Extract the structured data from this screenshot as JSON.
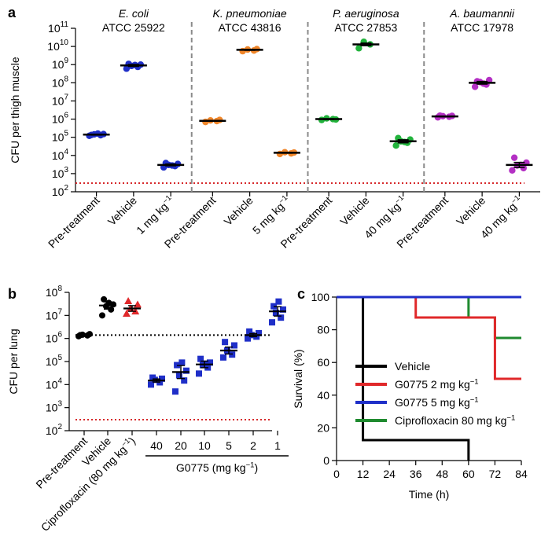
{
  "chart_data": [
    {
      "panel": "a",
      "type": "scatter",
      "ylabel": "CFU per thigh muscle",
      "yscale": "log",
      "ylim": [
        100,
        100000000000
      ],
      "y_ticks": [
        {
          "base": "10",
          "exp": "2"
        },
        {
          "base": "10",
          "exp": "3"
        },
        {
          "base": "10",
          "exp": "4"
        },
        {
          "base": "10",
          "exp": "5"
        },
        {
          "base": "10",
          "exp": "6"
        },
        {
          "base": "10",
          "exp": "7"
        },
        {
          "base": "10",
          "exp": "8"
        },
        {
          "base": "10",
          "exp": "9"
        },
        {
          "base": "10",
          "exp": "10"
        },
        {
          "base": "10",
          "exp": "11"
        }
      ],
      "detection_limit": 300,
      "strains": [
        {
          "name": "E. coli",
          "strain": "ATCC 25922",
          "color": "#1f2fc8",
          "groups": [
            {
              "label": "Pre-treatment",
              "value_pre": "",
              "unit_exp": "",
              "mean": 140000,
              "points": [
                120000,
                130000,
                145000,
                150000,
                135000,
                160000
              ]
            },
            {
              "label": "Vehicle",
              "value_pre": "",
              "unit_exp": "",
              "mean": 900000000,
              "points": [
                600000000,
                750000000,
                850000000,
                1000000000,
                1100000000,
                950000000
              ]
            },
            {
              "label": "",
              "value_pre": "1 mg kg",
              "unit_exp": "−1",
              "mean": 3000,
              "points": [
                2200,
                2600,
                3000,
                3400,
                3800,
                2800
              ]
            }
          ]
        },
        {
          "name": "K. pneumoniae",
          "strain": "ATCC 43816",
          "color": "#f0862a",
          "groups": [
            {
              "label": "Pre-treatment",
              "value_pre": "",
              "unit_exp": "",
              "mean": 800000,
              "points": [
                700000,
                780000,
                850000,
                900000
              ]
            },
            {
              "label": "Vehicle",
              "value_pre": "",
              "unit_exp": "",
              "mean": 6500000000,
              "points": [
                5500000000,
                6000000000,
                6800000000,
                7200000000
              ]
            },
            {
              "label": "",
              "value_pre": "5 mg kg",
              "unit_exp": "−1",
              "mean": 14000,
              "points": [
                12000,
                13000,
                15000,
                14500
              ]
            }
          ]
        },
        {
          "name": "P. aeruginosa",
          "strain": "ATCC 27853",
          "color": "#22b33c",
          "groups": [
            {
              "label": "Pre-treatment",
              "value_pre": "",
              "unit_exp": "",
              "mean": 1000000,
              "points": [
                900000,
                1000000,
                1100000,
                950000
              ]
            },
            {
              "label": "Vehicle",
              "value_pre": "",
              "unit_exp": "",
              "mean": 13000000000,
              "points": [
                8000000000,
                13000000000,
                18000000000
              ]
            },
            {
              "label": "",
              "value_pre": "40 mg kg",
              "unit_exp": "−1",
              "mean": 60000,
              "points": [
                35000,
                50000,
                60000,
                75000,
                90000,
                55000
              ]
            }
          ]
        },
        {
          "name": "A. baumannii",
          "strain": "ATCC 17978",
          "color": "#b430c4",
          "groups": [
            {
              "label": "Pre-treatment",
              "value_pre": "",
              "unit_exp": "",
              "mean": 1400000,
              "points": [
                1250000,
                1350000,
                1450000,
                1500000,
                1550000
              ]
            },
            {
              "label": "Vehicle",
              "value_pre": "",
              "unit_exp": "",
              "mean": 100000000,
              "points": [
                60000000,
                80000000,
                110000000,
                140000000,
                120000000,
                90000000
              ]
            },
            {
              "label": "",
              "value_pre": "40 mg kg",
              "unit_exp": "−1",
              "mean": 3000,
              "points": [
                1500,
                2000,
                2800,
                4000,
                7500,
                3000
              ]
            }
          ]
        }
      ]
    },
    {
      "panel": "b",
      "type": "scatter",
      "ylabel": "CFU per lung",
      "yscale": "log",
      "ylim": [
        100,
        100000000
      ],
      "y_ticks": [
        {
          "base": "10",
          "exp": "2"
        },
        {
          "base": "10",
          "exp": "3"
        },
        {
          "base": "10",
          "exp": "4"
        },
        {
          "base": "10",
          "exp": "5"
        },
        {
          "base": "10",
          "exp": "6"
        },
        {
          "base": "10",
          "exp": "7"
        },
        {
          "base": "10",
          "exp": "8"
        }
      ],
      "pretreatment_line": 1400000,
      "detection_limit": 300,
      "xlabel_pre": "G0775 (mg kg",
      "xlabel_exp": "−1",
      "xlabel_post": ")",
      "groups": [
        {
          "label": "Pre-treatment",
          "marker": "circle",
          "color": "#000000",
          "mean": 1400000,
          "points": [
            1250000,
            1350000,
            1450000,
            1550000,
            1400000
          ]
        },
        {
          "label": "Vehicle",
          "marker": "circle",
          "color": "#000000",
          "mean": 27000000,
          "points": [
            10000000,
            18000000,
            25000000,
            30000000,
            50000000,
            35000000
          ]
        },
        {
          "label": "Ciprofloxacin (80 mg kg",
          "label_exp": "−1",
          "label_post": ")",
          "marker": "triangle",
          "color": "#e0282a",
          "mean": 20000000,
          "points": [
            12000000,
            15000000,
            20000000,
            30000000,
            42000000
          ]
        },
        {
          "label": "40",
          "marker": "square",
          "color": "#1f2fc8",
          "mean": 15000,
          "points": [
            10000,
            12500,
            16000,
            18000,
            20000
          ]
        },
        {
          "label": "20",
          "marker": "square",
          "color": "#1f2fc8",
          "mean": 35000,
          "points": [
            5000,
            15000,
            25000,
            40000,
            70000,
            90000
          ]
        },
        {
          "label": "10",
          "marker": "square",
          "color": "#1f2fc8",
          "mean": 75000,
          "points": [
            30000,
            55000,
            70000,
            90000,
            130000,
            80000
          ]
        },
        {
          "label": "5",
          "marker": "square",
          "color": "#1f2fc8",
          "mean": 300000,
          "points": [
            150000,
            200000,
            300000,
            500000,
            700000
          ]
        },
        {
          "label": "2",
          "marker": "square",
          "color": "#1f2fc8",
          "mean": 1400000,
          "points": [
            1000000,
            1200000,
            1400000,
            1700000,
            2000000
          ]
        },
        {
          "label": "1",
          "marker": "square",
          "color": "#1f2fc8",
          "mean": 15000000,
          "points": [
            5000000,
            8000000,
            13000000,
            18000000,
            25000000,
            40000000
          ]
        }
      ]
    },
    {
      "panel": "c",
      "type": "line",
      "step": true,
      "xlabel": "Time (h)",
      "ylabel": "Survival (%)",
      "xlim": [
        0,
        84
      ],
      "ylim": [
        0,
        100
      ],
      "x_ticks": [
        0,
        12,
        24,
        36,
        48,
        60,
        72,
        84
      ],
      "y_ticks": [
        0,
        20,
        40,
        60,
        80,
        100
      ],
      "legend_position": "bottom-left",
      "series": [
        {
          "name": "Vehicle",
          "name_exp": "",
          "color": "#000000",
          "x": [
            0,
            12,
            12,
            60,
            60
          ],
          "y": [
            100,
            100,
            12.5,
            12.5,
            0
          ]
        },
        {
          "name": "G0775 2 mg kg",
          "name_exp": "−1",
          "color": "#e0282a",
          "x": [
            0,
            36,
            36,
            72,
            72,
            84
          ],
          "y": [
            100,
            100,
            87.5,
            87.5,
            50,
            50
          ]
        },
        {
          "name": "G0775 5 mg kg",
          "name_exp": "−1",
          "color": "#1f2fc8",
          "x": [
            0,
            84
          ],
          "y": [
            100,
            100
          ]
        },
        {
          "name": "Ciprofloxacin 80 mg kg",
          "name_exp": "−1",
          "color": "#1f8a2f",
          "x": [
            0,
            60,
            60,
            72,
            72,
            84
          ],
          "y": [
            100,
            100,
            87.5,
            87.5,
            75,
            75
          ]
        }
      ]
    }
  ],
  "panel_labels": [
    "a",
    "b",
    "c"
  ]
}
